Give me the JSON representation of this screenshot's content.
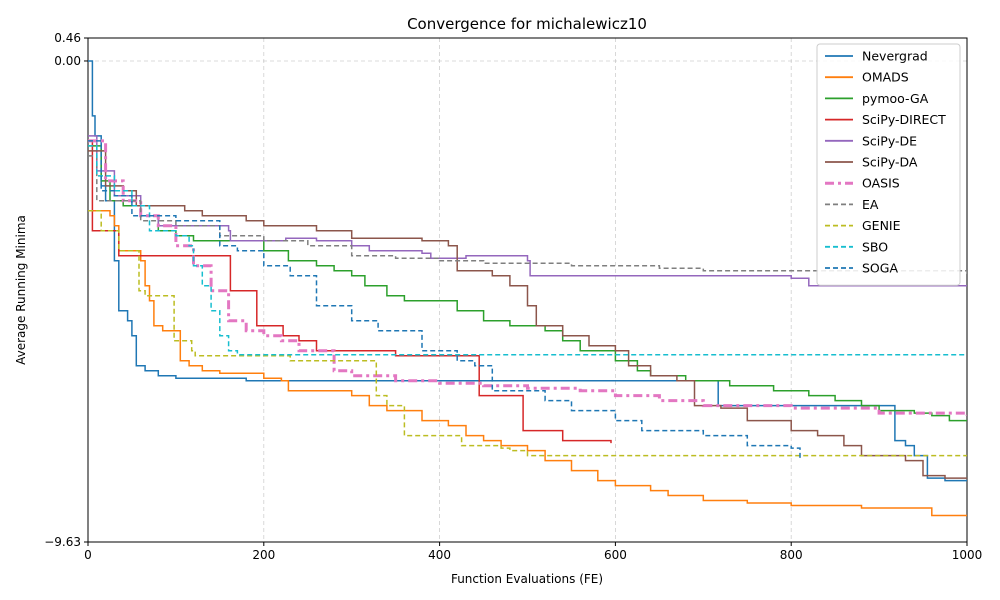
{
  "chart_data": {
    "type": "line",
    "title": "Convergence for michalewicz10",
    "xlabel": "Function Evaluations (FE)",
    "ylabel": "Average Running Minima",
    "xlim": [
      0,
      1000
    ],
    "ylim": [
      -9.63,
      0.46
    ],
    "x_ticks": [
      "0",
      "200",
      "400",
      "600",
      "800",
      "1000"
    ],
    "y_ticks": [
      {
        "value": 0.46,
        "label": "0.46"
      },
      {
        "value": 0.0,
        "label": "0.00"
      },
      {
        "value": -9.63,
        "label": "−9.63"
      }
    ],
    "grid": true,
    "legend_position": "top-right",
    "series": [
      {
        "name": "Nevergrad",
        "color": "#1f77b4",
        "dash": "solid",
        "points": [
          [
            0,
            0
          ],
          [
            3,
            0
          ],
          [
            5,
            -1.1
          ],
          [
            8,
            -1.5
          ],
          [
            13,
            -1.5
          ],
          [
            15,
            -2.5
          ],
          [
            20,
            -2.8
          ],
          [
            30,
            -4.0
          ],
          [
            35,
            -5.0
          ],
          [
            40,
            -5.0
          ],
          [
            45,
            -5.2
          ],
          [
            50,
            -5.5
          ],
          [
            55,
            -6.1
          ],
          [
            65,
            -6.2
          ],
          [
            80,
            -6.3
          ],
          [
            100,
            -6.35
          ],
          [
            160,
            -6.35
          ],
          [
            180,
            -6.4
          ],
          [
            220,
            -6.4
          ],
          [
            400,
            -6.4
          ],
          [
            715,
            -6.4
          ],
          [
            717,
            -6.9
          ],
          [
            900,
            -6.9
          ],
          [
            918,
            -7.6
          ],
          [
            930,
            -7.7
          ],
          [
            940,
            -7.9
          ],
          [
            955,
            -8.35
          ],
          [
            975,
            -8.4
          ],
          [
            1000,
            -8.4
          ]
        ]
      },
      {
        "name": "OMADS",
        "color": "#ff7f0e",
        "dash": "solid",
        "points": [
          [
            0,
            -3.0
          ],
          [
            10,
            -3.0
          ],
          [
            25,
            -3.1
          ],
          [
            30,
            -3.3
          ],
          [
            35,
            -3.8
          ],
          [
            50,
            -3.8
          ],
          [
            55,
            -3.8
          ],
          [
            60,
            -4.0
          ],
          [
            65,
            -4.5
          ],
          [
            70,
            -4.8
          ],
          [
            75,
            -5.3
          ],
          [
            85,
            -5.4
          ],
          [
            100,
            -5.4
          ],
          [
            105,
            -6.0
          ],
          [
            115,
            -6.1
          ],
          [
            130,
            -6.2
          ],
          [
            150,
            -6.25
          ],
          [
            200,
            -6.35
          ],
          [
            220,
            -6.4
          ],
          [
            228,
            -6.6
          ],
          [
            270,
            -6.6
          ],
          [
            300,
            -6.7
          ],
          [
            320,
            -6.9
          ],
          [
            340,
            -7.0
          ],
          [
            380,
            -7.2
          ],
          [
            410,
            -7.3
          ],
          [
            430,
            -7.5
          ],
          [
            450,
            -7.6
          ],
          [
            470,
            -7.7
          ],
          [
            500,
            -7.8
          ],
          [
            520,
            -8.0
          ],
          [
            550,
            -8.2
          ],
          [
            580,
            -8.4
          ],
          [
            600,
            -8.5
          ],
          [
            640,
            -8.6
          ],
          [
            660,
            -8.7
          ],
          [
            700,
            -8.8
          ],
          [
            750,
            -8.85
          ],
          [
            800,
            -8.9
          ],
          [
            880,
            -8.95
          ],
          [
            960,
            -9.1
          ],
          [
            1000,
            -9.1
          ]
        ]
      },
      {
        "name": "pymoo-GA",
        "color": "#2ca02c",
        "dash": "solid",
        "points": [
          [
            0,
            -1.7
          ],
          [
            15,
            -2.4
          ],
          [
            25,
            -2.8
          ],
          [
            40,
            -2.9
          ],
          [
            60,
            -3.1
          ],
          [
            80,
            -3.4
          ],
          [
            100,
            -3.5
          ],
          [
            120,
            -3.6
          ],
          [
            150,
            -3.6
          ],
          [
            200,
            -3.8
          ],
          [
            220,
            -3.8
          ],
          [
            228,
            -4.0
          ],
          [
            260,
            -4.1
          ],
          [
            280,
            -4.2
          ],
          [
            300,
            -4.3
          ],
          [
            315,
            -4.5
          ],
          [
            340,
            -4.7
          ],
          [
            360,
            -4.8
          ],
          [
            400,
            -4.8
          ],
          [
            420,
            -5.0
          ],
          [
            450,
            -5.2
          ],
          [
            480,
            -5.3
          ],
          [
            520,
            -5.4
          ],
          [
            540,
            -5.6
          ],
          [
            560,
            -5.8
          ],
          [
            600,
            -6.0
          ],
          [
            625,
            -6.2
          ],
          [
            640,
            -6.3
          ],
          [
            680,
            -6.4
          ],
          [
            730,
            -6.5
          ],
          [
            780,
            -6.6
          ],
          [
            820,
            -6.7
          ],
          [
            850,
            -6.8
          ],
          [
            880,
            -6.9
          ],
          [
            900,
            -7.0
          ],
          [
            940,
            -7.05
          ],
          [
            960,
            -7.1
          ],
          [
            980,
            -7.2
          ],
          [
            1000,
            -7.2
          ]
        ]
      },
      {
        "name": "SciPy-DIRECT",
        "color": "#d62728",
        "dash": "solid",
        "points": [
          [
            0,
            -1.6
          ],
          [
            5,
            -3.4
          ],
          [
            30,
            -3.4
          ],
          [
            35,
            -3.9
          ],
          [
            50,
            -3.9
          ],
          [
            160,
            -3.9
          ],
          [
            162,
            -4.6
          ],
          [
            190,
            -4.6
          ],
          [
            192,
            -5.3
          ],
          [
            215,
            -5.3
          ],
          [
            222,
            -5.5
          ],
          [
            240,
            -5.6
          ],
          [
            260,
            -5.8
          ],
          [
            350,
            -5.9
          ],
          [
            430,
            -5.9
          ],
          [
            445,
            -6.7
          ],
          [
            490,
            -6.7
          ],
          [
            495,
            -7.4
          ],
          [
            535,
            -7.4
          ],
          [
            540,
            -7.6
          ],
          [
            590,
            -7.6
          ],
          [
            595,
            -7.65
          ]
        ]
      },
      {
        "name": "SciPy-DE",
        "color": "#9467bd",
        "dash": "solid",
        "points": [
          [
            0,
            -1.5
          ],
          [
            10,
            -2.2
          ],
          [
            30,
            -2.7
          ],
          [
            60,
            -3.1
          ],
          [
            80,
            -3.3
          ],
          [
            160,
            -3.4
          ],
          [
            162,
            -3.6
          ],
          [
            220,
            -3.6
          ],
          [
            225,
            -3.55
          ],
          [
            260,
            -3.6
          ],
          [
            290,
            -3.6
          ],
          [
            300,
            -3.7
          ],
          [
            320,
            -3.8
          ],
          [
            380,
            -3.85
          ],
          [
            390,
            -3.95
          ],
          [
            430,
            -3.9
          ],
          [
            500,
            -4.0
          ],
          [
            503,
            -4.3
          ],
          [
            680,
            -4.3
          ],
          [
            700,
            -4.3
          ],
          [
            800,
            -4.35
          ],
          [
            820,
            -4.5
          ],
          [
            1000,
            -4.5
          ]
        ]
      },
      {
        "name": "SciPy-DA",
        "color": "#8c564b",
        "dash": "solid",
        "points": [
          [
            0,
            -1.8
          ],
          [
            20,
            -2.5
          ],
          [
            40,
            -2.6
          ],
          [
            55,
            -2.9
          ],
          [
            100,
            -2.9
          ],
          [
            110,
            -3.0
          ],
          [
            130,
            -3.1
          ],
          [
            180,
            -3.2
          ],
          [
            200,
            -3.3
          ],
          [
            260,
            -3.4
          ],
          [
            300,
            -3.55
          ],
          [
            380,
            -3.6
          ],
          [
            410,
            -3.7
          ],
          [
            420,
            -4.2
          ],
          [
            460,
            -4.3
          ],
          [
            480,
            -4.5
          ],
          [
            500,
            -4.9
          ],
          [
            510,
            -5.3
          ],
          [
            540,
            -5.5
          ],
          [
            570,
            -5.7
          ],
          [
            600,
            -5.8
          ],
          [
            615,
            -6.1
          ],
          [
            640,
            -6.3
          ],
          [
            670,
            -6.4
          ],
          [
            690,
            -6.9
          ],
          [
            720,
            -6.95
          ],
          [
            750,
            -7.2
          ],
          [
            800,
            -7.4
          ],
          [
            830,
            -7.5
          ],
          [
            860,
            -7.7
          ],
          [
            880,
            -7.9
          ],
          [
            930,
            -8.0
          ],
          [
            950,
            -8.3
          ],
          [
            975,
            -8.35
          ],
          [
            1000,
            -8.35
          ]
        ]
      },
      {
        "name": "OASIS",
        "color": "#e377c2",
        "dash": "dashdot",
        "width": 3,
        "points": [
          [
            0,
            -1.6
          ],
          [
            20,
            -2.4
          ],
          [
            40,
            -2.8
          ],
          [
            60,
            -3.1
          ],
          [
            80,
            -3.3
          ],
          [
            100,
            -3.7
          ],
          [
            120,
            -4.1
          ],
          [
            140,
            -4.6
          ],
          [
            160,
            -5.2
          ],
          [
            180,
            -5.4
          ],
          [
            200,
            -5.5
          ],
          [
            220,
            -5.6
          ],
          [
            240,
            -5.8
          ],
          [
            280,
            -6.2
          ],
          [
            300,
            -6.3
          ],
          [
            350,
            -6.4
          ],
          [
            400,
            -6.45
          ],
          [
            450,
            -6.5
          ],
          [
            500,
            -6.55
          ],
          [
            560,
            -6.6
          ],
          [
            600,
            -6.7
          ],
          [
            650,
            -6.8
          ],
          [
            700,
            -6.9
          ],
          [
            800,
            -6.95
          ],
          [
            900,
            -7.05
          ],
          [
            1000,
            -7.1
          ]
        ]
      },
      {
        "name": "EA",
        "color": "#7f7f7f",
        "dash": "dashed",
        "points": [
          [
            0,
            -1.9
          ],
          [
            10,
            -2.8
          ],
          [
            30,
            -2.8
          ],
          [
            60,
            -3.2
          ],
          [
            100,
            -3.3
          ],
          [
            150,
            -3.5
          ],
          [
            200,
            -3.6
          ],
          [
            250,
            -3.7
          ],
          [
            300,
            -3.9
          ],
          [
            350,
            -3.95
          ],
          [
            400,
            -4.0
          ],
          [
            450,
            -4.05
          ],
          [
            550,
            -4.1
          ],
          [
            650,
            -4.15
          ],
          [
            700,
            -4.2
          ],
          [
            1000,
            -4.3
          ]
        ]
      },
      {
        "name": "GENIE",
        "color": "#bcbd22",
        "dash": "dashed",
        "points": [
          [
            0,
            -3.0
          ],
          [
            10,
            -3.0
          ],
          [
            15,
            -3.4
          ],
          [
            30,
            -3.4
          ],
          [
            35,
            -3.8
          ],
          [
            55,
            -3.8
          ],
          [
            58,
            -4.6
          ],
          [
            65,
            -4.7
          ],
          [
            95,
            -4.7
          ],
          [
            98,
            -5.6
          ],
          [
            115,
            -5.6
          ],
          [
            118,
            -5.8
          ],
          [
            122,
            -5.9
          ],
          [
            220,
            -5.9
          ],
          [
            230,
            -6.0
          ],
          [
            320,
            -6.0
          ],
          [
            328,
            -6.7
          ],
          [
            340,
            -6.9
          ],
          [
            355,
            -6.9
          ],
          [
            360,
            -7.5
          ],
          [
            420,
            -7.5
          ],
          [
            425,
            -7.7
          ],
          [
            460,
            -7.7
          ],
          [
            470,
            -7.75
          ],
          [
            480,
            -7.8
          ],
          [
            500,
            -7.9
          ],
          [
            1000,
            -7.9
          ]
        ]
      },
      {
        "name": "SBO",
        "color": "#17becf",
        "dash": "dashed",
        "points": [
          [
            0,
            -1.7
          ],
          [
            10,
            -2.3
          ],
          [
            30,
            -2.6
          ],
          [
            50,
            -2.9
          ],
          [
            70,
            -3.4
          ],
          [
            100,
            -3.5
          ],
          [
            115,
            -3.7
          ],
          [
            120,
            -4.1
          ],
          [
            130,
            -4.5
          ],
          [
            140,
            -5.0
          ],
          [
            150,
            -5.5
          ],
          [
            160,
            -5.8
          ],
          [
            170,
            -5.88
          ],
          [
            1000,
            -5.88
          ]
        ]
      },
      {
        "name": "SOGA",
        "color": "#1f77b4",
        "dash": "dashed",
        "points": [
          [
            0,
            -1.6
          ],
          [
            15,
            -2.6
          ],
          [
            30,
            -2.7
          ],
          [
            50,
            -3.1
          ],
          [
            100,
            -3.2
          ],
          [
            150,
            -3.7
          ],
          [
            170,
            -3.8
          ],
          [
            200,
            -4.1
          ],
          [
            230,
            -4.3
          ],
          [
            260,
            -4.9
          ],
          [
            300,
            -5.2
          ],
          [
            330,
            -5.4
          ],
          [
            380,
            -5.8
          ],
          [
            420,
            -6.0
          ],
          [
            440,
            -6.1
          ],
          [
            460,
            -6.6
          ],
          [
            500,
            -6.6
          ],
          [
            520,
            -6.8
          ],
          [
            550,
            -7.0
          ],
          [
            600,
            -7.2
          ],
          [
            630,
            -7.4
          ],
          [
            700,
            -7.5
          ],
          [
            750,
            -7.7
          ],
          [
            800,
            -7.75
          ],
          [
            810,
            -8.0
          ]
        ]
      }
    ]
  }
}
